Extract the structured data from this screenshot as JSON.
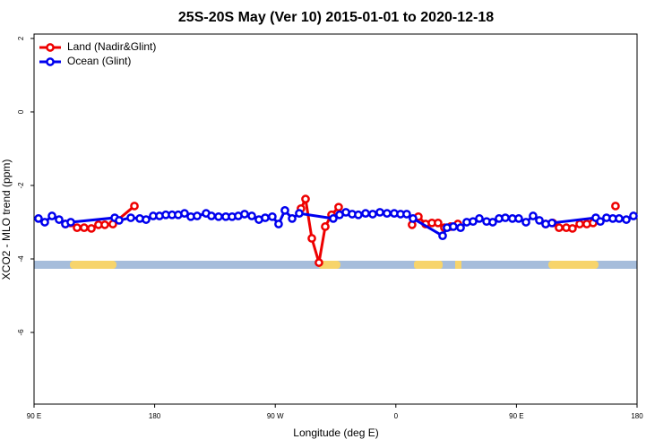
{
  "chart_data": {
    "type": "line",
    "title": "25S-20S May (Ver 10)   2015-01-01 to 2020-12-18",
    "xlabel": "Longitude (deg E)",
    "ylabel": "XCO2 - MLO trend (ppm)",
    "xlim": [
      90,
      540
    ],
    "ylim": [
      -7.95,
      2.12
    ],
    "xticks": [
      {
        "value": 90,
        "label": "90 E"
      },
      180,
      {
        "value": 270,
        "label": "90 W"
      },
      {
        "value": 360,
        "label": "0"
      },
      {
        "value": 450,
        "label": "90 E"
      },
      {
        "value": 540,
        "label": "180"
      }
    ],
    "yticks": [
      2,
      0,
      -2,
      -4,
      -6
    ],
    "legend": "upper left",
    "series": [
      {
        "name": "Land (Nadir&Glint)",
        "color": "#ee0000",
        "x": [
          113.4,
          117.4,
          122.1,
          127.4,
          132.8,
          138.1,
          142.8,
          148.8,
          164.9,
          null,
          289.2,
          292.6,
          297.3,
          302.6,
          307.3,
          312.0,
          317.3,
          null,
          372.1,
          376.8,
          382.2,
          386.9,
          391.5,
          396.2,
          400.9,
          406.3,
          null,
          471.8,
          477.1,
          481.8,
          487.2,
          491.8,
          497.2,
          502.5,
          507.2,
          null,
          523.9
        ],
        "values": [
          -3.05,
          -3.02,
          -3.15,
          -3.15,
          -3.17,
          -3.07,
          -3.07,
          -3.05,
          -2.56,
          null,
          -2.63,
          -2.37,
          -3.44,
          -4.1,
          -3.12,
          -2.8,
          -2.59,
          null,
          -3.07,
          -2.85,
          -3.05,
          -3.02,
          -3.02,
          -3.15,
          -3.12,
          -3.05,
          null,
          -3.05,
          -3.02,
          -3.15,
          -3.15,
          -3.17,
          -3.05,
          -3.05,
          -3.02,
          null,
          -2.56
        ]
      },
      {
        "name": "Ocean (Glint)",
        "color": "#0000ee",
        "x": [
          93.3,
          98.0,
          103.4,
          108.7,
          113.4,
          117.4,
          150.2,
          153.5,
          162.2,
          168.9,
          173.6,
          178.9,
          183.6,
          188.3,
          193.0,
          197.6,
          202.3,
          207.0,
          211.7,
          218.4,
          222.4,
          227.7,
          233.1,
          237.8,
          242.4,
          247.1,
          252.5,
          257.8,
          262.5,
          267.8,
          272.5,
          277.2,
          282.6,
          287.9,
          313.3,
          318.0,
          322.7,
          327.4,
          332.0,
          337.4,
          342.7,
          348.1,
          353.4,
          358.8,
          363.5,
          368.1,
          372.8,
          394.9,
          398.2,
          402.9,
          408.3,
          412.9,
          417.6,
          422.3,
          427.7,
          432.3,
          437.0,
          441.7,
          447.0,
          451.7,
          457.1,
          462.4,
          467.1,
          471.8,
          476.5,
          509.2,
          512.6,
          517.2,
          521.9,
          526.6,
          532.0,
          537.3
        ],
        "values": [
          -2.9,
          -3.0,
          -2.83,
          -2.93,
          -3.05,
          -3.0,
          -2.88,
          -2.95,
          -2.88,
          -2.9,
          -2.93,
          -2.83,
          -2.83,
          -2.8,
          -2.8,
          -2.8,
          -2.76,
          -2.85,
          -2.83,
          -2.76,
          -2.83,
          -2.85,
          -2.85,
          -2.85,
          -2.83,
          -2.78,
          -2.83,
          -2.93,
          -2.88,
          -2.85,
          -3.05,
          -2.68,
          -2.9,
          -2.76,
          -2.9,
          -2.8,
          -2.73,
          -2.78,
          -2.8,
          -2.76,
          -2.78,
          -2.73,
          -2.76,
          -2.76,
          -2.78,
          -2.78,
          -2.9,
          -3.37,
          -3.15,
          -3.12,
          -3.15,
          -3.0,
          -2.98,
          -2.9,
          -2.98,
          -3.0,
          -2.9,
          -2.88,
          -2.9,
          -2.9,
          -3.0,
          -2.83,
          -2.95,
          -3.05,
          -3.02,
          -2.88,
          -2.98,
          -2.88,
          -2.9,
          -2.9,
          -2.93,
          -2.83
        ]
      }
    ]
  }
}
